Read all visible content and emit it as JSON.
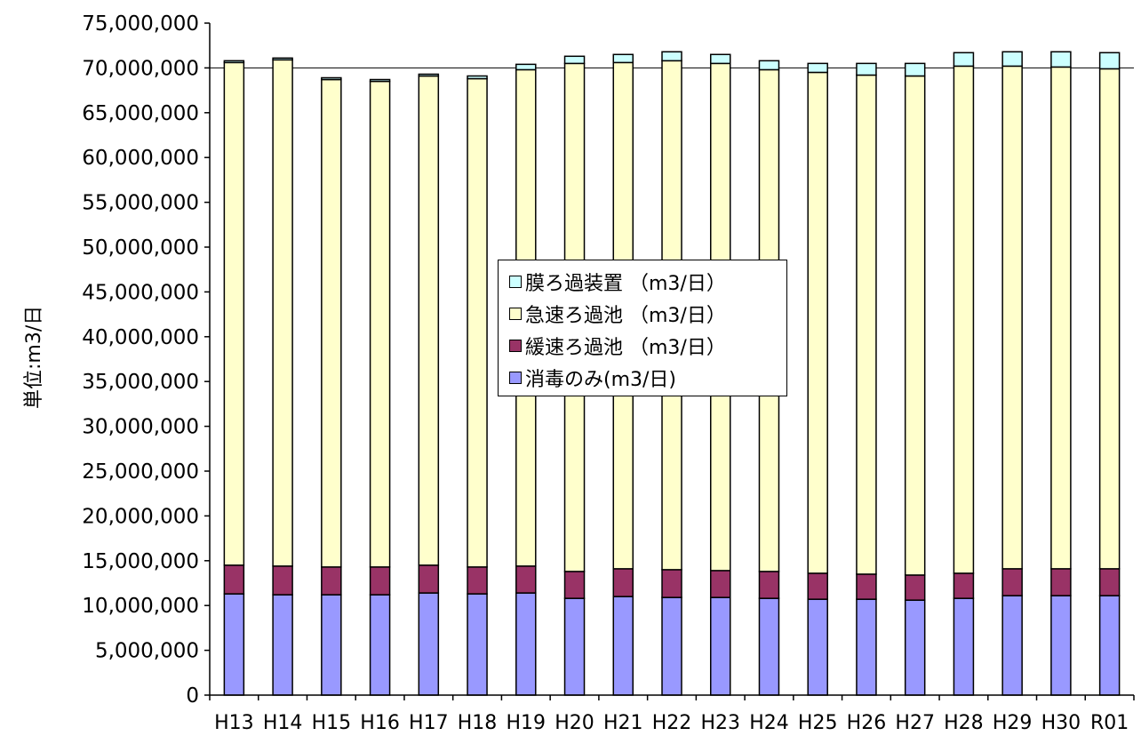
{
  "chart_data": {
    "type": "bar",
    "stacked": true,
    "ylabel": "単位:m3/日",
    "ylim": [
      0,
      75000000
    ],
    "ytick_step": 5000000,
    "ytick_labels": [
      "0",
      "5,000,000",
      "10,000,000",
      "15,000,000",
      "20,000,000",
      "25,000,000",
      "30,000,000",
      "35,000,000",
      "40,000,000",
      "45,000,000",
      "50,000,000",
      "55,000,000",
      "60,000,000",
      "65,000,000",
      "70,000,000",
      "75,000,000"
    ],
    "grid": "horizontal at 70,000,000",
    "legend_position": "center",
    "categories": [
      "H13",
      "H14",
      "H15",
      "H16",
      "H17",
      "H18",
      "H19",
      "H20",
      "H21",
      "H22",
      "H23",
      "H24",
      "H25",
      "H26",
      "H27",
      "H28",
      "H29",
      "H30",
      "R01"
    ],
    "series": [
      {
        "name": "消毒のみ(m3/日)",
        "color": "#9999ff",
        "values": [
          11300000,
          11200000,
          11200000,
          11200000,
          11400000,
          11300000,
          11400000,
          10800000,
          11000000,
          10900000,
          10900000,
          10800000,
          10700000,
          10700000,
          10600000,
          10800000,
          11100000,
          11100000,
          11100000
        ]
      },
      {
        "name": "緩速ろ過池 （m3/日）",
        "color": "#993366",
        "values": [
          3200000,
          3200000,
          3100000,
          3100000,
          3100000,
          3000000,
          3000000,
          3000000,
          3100000,
          3100000,
          3000000,
          3000000,
          2900000,
          2800000,
          2800000,
          2800000,
          3000000,
          3000000,
          3000000
        ]
      },
      {
        "name": "急速ろ過池 （m3/日）",
        "color": "#ffffcc",
        "values": [
          56100000,
          56500000,
          54400000,
          54200000,
          54600000,
          54500000,
          55400000,
          56700000,
          56500000,
          56800000,
          56600000,
          56000000,
          55900000,
          55700000,
          55700000,
          56600000,
          56100000,
          56000000,
          55800000
        ]
      },
      {
        "name": "膜ろ過装置 （m3/日）",
        "color": "#ccffff",
        "values": [
          200000,
          200000,
          200000,
          200000,
          200000,
          300000,
          600000,
          800000,
          900000,
          1000000,
          1000000,
          1000000,
          1000000,
          1300000,
          1400000,
          1500000,
          1600000,
          1700000,
          1800000
        ]
      }
    ]
  }
}
